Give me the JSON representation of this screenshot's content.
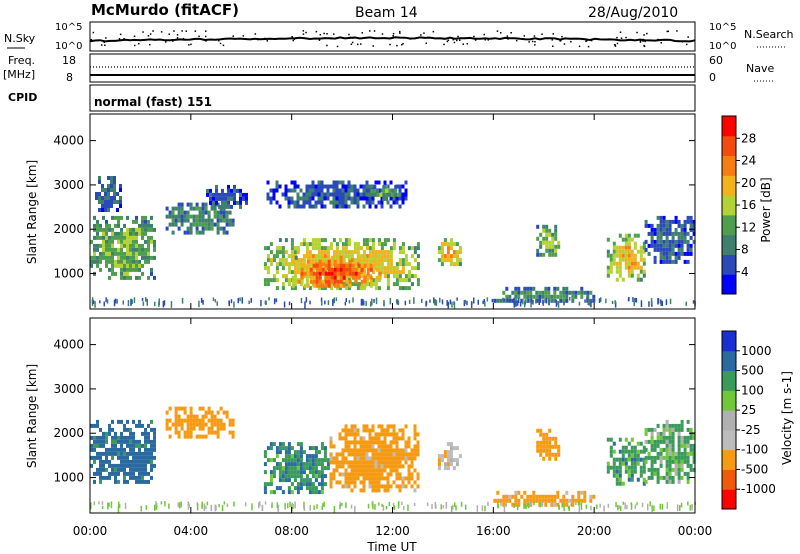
{
  "header": {
    "station": "McMurdo (fitACF)",
    "beam": "Beam 14",
    "date": "28/Aug/2010"
  },
  "noise_panel": {
    "left_label": "N.Sky",
    "right_label": "N.Search",
    "left_ticks": [
      "10^5",
      "10^0"
    ],
    "right_ticks": [
      "10^5",
      "10^0"
    ]
  },
  "freq_panel": {
    "left_label_1": "Freq.",
    "left_label_2": "[MHz]",
    "right_label": "Nave",
    "left_ticks": [
      "18",
      "8"
    ],
    "right_ticks": [
      "60",
      "0"
    ]
  },
  "cpid_panel": {
    "label": "CPID",
    "text": "normal (fast) 151"
  },
  "colors": {
    "power_scale": [
      "#0000ff",
      "#2a4ab8",
      "#3f7f6e",
      "#4f9e4f",
      "#b5d234",
      "#f1b21a",
      "#f77d12",
      "#f34a0d",
      "#ff0000"
    ],
    "velocity_scale": [
      "#ff0000",
      "#f05a0a",
      "#f59a12",
      "#bcbcbc",
      "#b0b0b0",
      "#70c838",
      "#3a9a5a",
      "#2a6aa0",
      "#1a2fd0"
    ]
  },
  "chart_data": [
    {
      "type": "heatmap",
      "title": "",
      "xlabel": "",
      "ylabel": "Slant Range [km]",
      "xlim": [
        "00:00",
        "24:00"
      ],
      "ylim": [
        200,
        4600
      ],
      "y_ticks": [
        "1000",
        "2000",
        "3000",
        "4000"
      ],
      "x_ticks": [
        "00:00",
        "04:00",
        "08:00",
        "12:00",
        "16:00",
        "20:00",
        "00:00"
      ],
      "colorbar": {
        "label": "Power [dB]",
        "range": [
          0,
          32
        ],
        "ticks": [
          "4",
          "8",
          "12",
          "16",
          "20",
          "24",
          "28"
        ]
      },
      "patches": [
        {
          "t0": 0.0,
          "t1": 2.6,
          "r0": 900,
          "r1": 2300,
          "value": 14
        },
        {
          "t0": 0.2,
          "t1": 1.2,
          "r0": 2400,
          "r1": 3200,
          "value": 6
        },
        {
          "t0": 3.0,
          "t1": 5.7,
          "r0": 1900,
          "r1": 2600,
          "value": 10
        },
        {
          "t0": 4.6,
          "t1": 6.2,
          "r0": 2500,
          "r1": 3000,
          "value": 5
        },
        {
          "t0": 6.9,
          "t1": 13.0,
          "r0": 700,
          "r1": 1800,
          "value": 20
        },
        {
          "t0": 8.0,
          "t1": 11.5,
          "r0": 700,
          "r1": 1400,
          "value": 28
        },
        {
          "t0": 7.0,
          "t1": 12.5,
          "r0": 2500,
          "r1": 3100,
          "value": 5
        },
        {
          "t0": 11.0,
          "t1": 12.2,
          "r0": 2700,
          "r1": 3000,
          "value": 12
        },
        {
          "t0": 13.8,
          "t1": 14.7,
          "r0": 1200,
          "r1": 1800,
          "value": 22
        },
        {
          "t0": 17.7,
          "t1": 18.6,
          "r0": 1400,
          "r1": 2100,
          "value": 14
        },
        {
          "t0": 20.5,
          "t1": 22.0,
          "r0": 900,
          "r1": 1900,
          "value": 20
        },
        {
          "t0": 22.0,
          "t1": 24.0,
          "r0": 1300,
          "r1": 2300,
          "value": 6
        },
        {
          "t0": 16.0,
          "t1": 20.0,
          "r0": 400,
          "r1": 700,
          "value": 10
        }
      ]
    },
    {
      "type": "heatmap",
      "title": "",
      "xlabel": "Time UT",
      "ylabel": "Slant Range [km]",
      "xlim": [
        "00:00",
        "24:00"
      ],
      "ylim": [
        200,
        4600
      ],
      "y_ticks": [
        "1000",
        "2000",
        "3000",
        "4000"
      ],
      "x_ticks": [
        "00:00",
        "04:00",
        "08:00",
        "12:00",
        "16:00",
        "20:00",
        "00:00"
      ],
      "colorbar": {
        "label": "Velocity [m s-1]",
        "ticks": [
          "1000",
          "500",
          "100",
          "25",
          "-25",
          "-100",
          "-500",
          "-1000"
        ]
      },
      "patches": [
        {
          "t0": 0.0,
          "t1": 2.6,
          "r0": 900,
          "r1": 2300,
          "value": 150
        },
        {
          "t0": 3.0,
          "t1": 5.7,
          "r0": 1900,
          "r1": 2600,
          "value": -200
        },
        {
          "t0": 6.9,
          "t1": 9.5,
          "r0": 700,
          "r1": 1800,
          "value": 80
        },
        {
          "t0": 9.5,
          "t1": 13.0,
          "r0": 700,
          "r1": 2200,
          "value": -150
        },
        {
          "t0": 13.8,
          "t1": 14.7,
          "r0": 1200,
          "r1": 1800,
          "value": -60
        },
        {
          "t0": 17.7,
          "t1": 18.6,
          "r0": 1400,
          "r1": 2100,
          "value": -200
        },
        {
          "t0": 20.5,
          "t1": 22.0,
          "r0": 900,
          "r1": 1900,
          "value": 60
        },
        {
          "t0": 22.0,
          "t1": 24.0,
          "r0": 900,
          "r1": 2300,
          "value": 40
        },
        {
          "t0": 16.0,
          "t1": 20.0,
          "r0": 400,
          "r1": 700,
          "value": -150
        }
      ]
    }
  ]
}
